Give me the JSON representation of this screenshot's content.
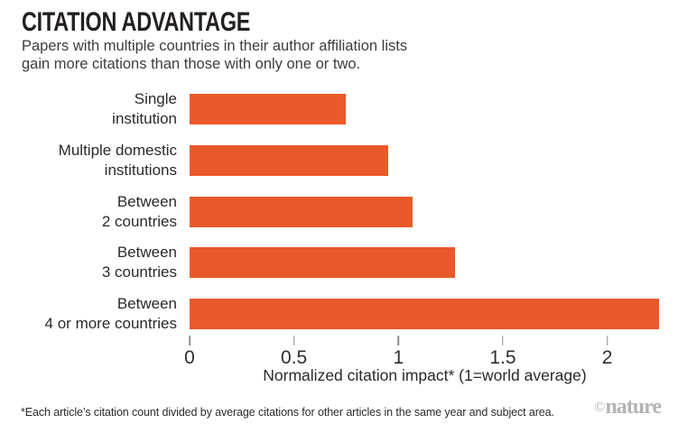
{
  "header": {
    "title": "CITATION ADVANTAGE",
    "subtitle": "Papers with multiple countries in their author affiliation lists\ngain more citations than those with only one or two."
  },
  "chart_data": {
    "type": "bar",
    "orientation": "horizontal",
    "categories": [
      "Single\ninstitution",
      "Multiple domestic\ninstitutions",
      "Between\n2 countries",
      "Between\n3 countries",
      "Between\n4 or more countries"
    ],
    "values": [
      0.75,
      0.95,
      1.07,
      1.27,
      2.25
    ],
    "title": "CITATION ADVANTAGE",
    "xlabel": "Normalized citation impact* (1=world average)",
    "ylabel": "",
    "xlim": [
      0,
      2.25
    ],
    "xticks": [
      0,
      0.5,
      1,
      1.5,
      2
    ],
    "xtick_labels": [
      "0",
      "0.5",
      "1",
      "1.5",
      "2"
    ],
    "grid": false,
    "legend": false,
    "bar_color": "#e9592a",
    "tick_color": "#8f8f8f"
  },
  "footer": {
    "footnote": "*Each article’s citation count divided by average citations for other articles in the same year and subject area.",
    "credit_symbol": "©",
    "credit_text": "nature"
  }
}
